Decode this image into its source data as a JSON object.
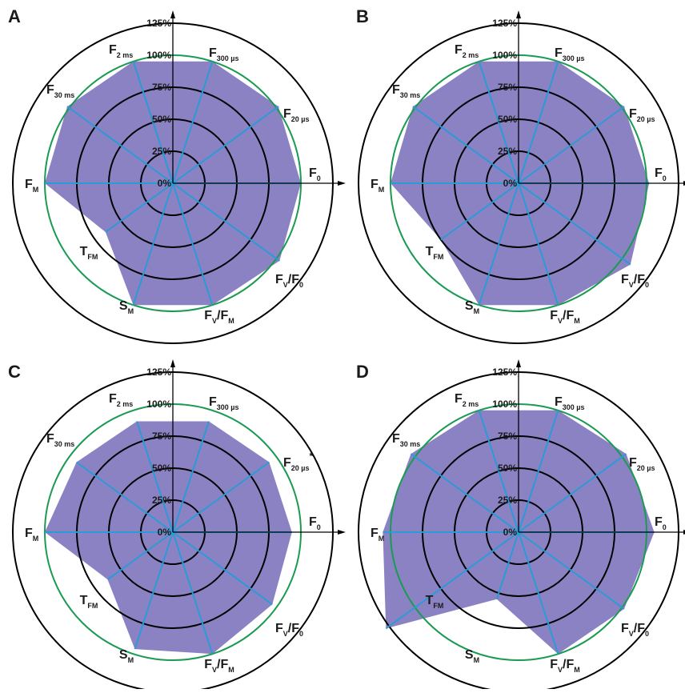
{
  "colors": {
    "fill": "#8b82c4",
    "spoke": "#2b9ad6",
    "ring": "#000000",
    "reference": "#1a9a52",
    "axis": "#000000"
  },
  "chart_data": [
    {
      "panel": "A",
      "type": "radar",
      "axes": [
        "F0",
        "F20 µs",
        "F300 µs",
        "F2 ms",
        "F30 ms",
        "FM",
        "TFM",
        "SM",
        "FV/FM",
        "FV/F0"
      ],
      "values": [
        100,
        102,
        100,
        100,
        102,
        100,
        65,
        100,
        100,
        103
      ],
      "star_axes": [],
      "rlim": [
        0,
        125
      ],
      "ticks": [
        "0%",
        "25%",
        "50%",
        "75%",
        "100%",
        "125%"
      ]
    },
    {
      "panel": "B",
      "type": "radar",
      "axes": [
        "F0",
        "F20 µs",
        "F300 µs",
        "F2 ms",
        "F30 ms",
        "FM",
        "TFM",
        "SM",
        "FV/FM",
        "FV/F0"
      ],
      "values": [
        102,
        102,
        100,
        100,
        102,
        100,
        75,
        100,
        100,
        108
      ],
      "star_axes": [],
      "rlim": [
        0,
        125
      ],
      "ticks": [
        "0%",
        "25%",
        "50%",
        "75%",
        "100%",
        "125%"
      ]
    },
    {
      "panel": "C",
      "type": "radar",
      "axes": [
        "F0",
        "F20 µs",
        "F300 µs",
        "F2 ms",
        "F30 ms",
        "FM",
        "TFM",
        "SM",
        "FV/FM",
        "FV/F0"
      ],
      "values": [
        93,
        93,
        91,
        91,
        93,
        100,
        63,
        96,
        100,
        96
      ],
      "star_axes": [
        "F20 µs"
      ],
      "rlim": [
        0,
        125
      ],
      "ticks": [
        "0%",
        "25%",
        "50%",
        "75%",
        "100%",
        "125%"
      ]
    },
    {
      "panel": "D",
      "type": "radar",
      "axes": [
        "F0",
        "F20 µs",
        "F300 µs",
        "F2 ms",
        "F30 ms",
        "FM",
        "TFM",
        "SM",
        "FV/FM",
        "FV/F0"
      ],
      "values": [
        106,
        104,
        100,
        100,
        104,
        106,
        128,
        55,
        100,
        102
      ],
      "star_axes": [],
      "rlim": [
        0,
        125
      ],
      "ticks": [
        "0%",
        "25%",
        "50%",
        "75%",
        "100%",
        "125%"
      ]
    }
  ],
  "axis_labels": [
    {
      "main": "F",
      "sub": "0"
    },
    {
      "main": "F",
      "sub": "20 µs"
    },
    {
      "main": "F",
      "sub": "300 µs"
    },
    {
      "main": "F",
      "sub": "2 ms"
    },
    {
      "main": "F",
      "sub": "30 ms"
    },
    {
      "main": "F",
      "sub": "M"
    },
    {
      "main": "T",
      "sub": "FM"
    },
    {
      "main": "S",
      "sub": "M"
    },
    {
      "main": "F",
      "sub": "V",
      "main2": "/F",
      "sub2": "M"
    },
    {
      "main": "F",
      "sub": "V",
      "main2": "/F",
      "sub2": "0"
    }
  ]
}
